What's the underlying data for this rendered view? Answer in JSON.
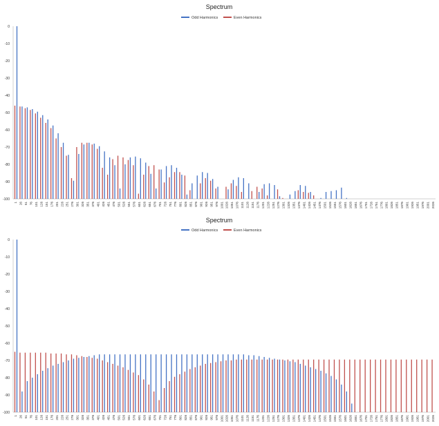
{
  "chart_data": [
    {
      "type": "bar",
      "title": "Spectrum",
      "legend": {
        "placement": "top-center"
      },
      "ylim": [
        -100,
        0
      ],
      "yticks": [
        0,
        -10,
        -20,
        -30,
        -40,
        -50,
        -60,
        -70,
        -80,
        -90,
        -100
      ],
      "x": [
        1,
        26,
        51,
        76,
        101,
        126,
        151,
        176,
        201,
        226,
        251,
        276,
        301,
        326,
        351,
        376,
        401,
        426,
        451,
        476,
        501,
        526,
        551,
        576,
        601,
        626,
        651,
        676,
        701,
        726,
        751,
        776,
        801,
        826,
        851,
        876,
        901,
        926,
        951,
        976,
        1001,
        1026,
        1051,
        1076,
        1101,
        1126,
        1151,
        1176,
        1201,
        1226,
        1251,
        1276,
        1301,
        1326,
        1351,
        1376,
        1401,
        1426,
        1451,
        1476,
        1501,
        1526,
        1551,
        1576,
        1601,
        1626,
        1651,
        1676,
        1701,
        1726,
        1751,
        1776,
        1801,
        1826,
        1851,
        1876,
        1901,
        1926,
        1951,
        1976,
        2001,
        2026
      ],
      "series": [
        {
          "name": "Odd Harmonics",
          "color": "#4472c4",
          "values": [
            0,
            -46.5,
            -47,
            -48,
            -49.5,
            -51.5,
            -54,
            -57.5,
            -62,
            -67.5,
            -74.5,
            -89.5,
            -74,
            -68.5,
            -67.5,
            -68,
            -69.5,
            -72.5,
            -76,
            -80.5,
            -94,
            -80,
            -76,
            -75.5,
            -76.5,
            -79,
            -85.5,
            -94,
            -83,
            -81,
            -80.5,
            -82,
            -86,
            -97.5,
            -91,
            -86.5,
            -84.5,
            -85,
            -88.5,
            -93,
            -100,
            -94.5,
            -89,
            -87.5,
            -88,
            -91,
            -100,
            -96,
            -91.5,
            -91,
            -92,
            -98.5,
            -100,
            -97.5,
            -95.5,
            -92,
            -92.5,
            -96,
            -100,
            -99.5,
            -96,
            -95.5,
            -95,
            -93.5,
            -99.5,
            -100,
            -100,
            -100,
            -100,
            -100,
            -100,
            -100,
            -100,
            -100,
            -100,
            -100,
            -100,
            -100,
            -100,
            -100,
            -100,
            -100
          ]
        },
        {
          "name": "Even Harmonics",
          "color": "#c0504d",
          "values": [
            -46,
            -46.5,
            -47.5,
            -48.5,
            -50.5,
            -53,
            -56,
            -59,
            -65,
            -70,
            -75,
            -88,
            -70,
            -67.5,
            -67.5,
            -68.5,
            -71,
            -82,
            -86,
            -77,
            -75,
            -76,
            -77.5,
            -80.5,
            -97,
            -86,
            -81,
            -80.5,
            -83,
            -90.5,
            -87.5,
            -84.5,
            -84.5,
            -86.5,
            -95,
            -100,
            -91,
            -88,
            -89.5,
            -94,
            -100,
            -93,
            -91,
            -92.5,
            -96,
            -100,
            -95.5,
            -93,
            -94,
            -98,
            -100,
            -94.5,
            -99.5,
            -100,
            -100,
            -95,
            -96,
            -96.5,
            -98,
            -100,
            -100,
            -100,
            -100,
            -100,
            -100,
            -100,
            -100,
            -100,
            -100,
            -100,
            -100,
            -100,
            -100,
            -100,
            -100,
            -100,
            -100,
            -100,
            -100,
            -100,
            -100,
            -100
          ]
        }
      ]
    },
    {
      "type": "bar",
      "title": "Spectrum",
      "legend": {
        "placement": "top-center"
      },
      "ylim": [
        -100,
        0
      ],
      "yticks": [
        0,
        -10,
        -20,
        -30,
        -40,
        -50,
        -60,
        -70,
        -80,
        -90,
        -100
      ],
      "x": [
        1,
        26,
        51,
        76,
        101,
        126,
        151,
        176,
        201,
        226,
        251,
        276,
        301,
        326,
        351,
        376,
        401,
        426,
        451,
        476,
        501,
        526,
        551,
        576,
        601,
        626,
        651,
        676,
        701,
        726,
        751,
        776,
        801,
        826,
        851,
        876,
        901,
        926,
        951,
        976,
        1001,
        1026,
        1051,
        1076,
        1101,
        1126,
        1151,
        1176,
        1201,
        1226,
        1251,
        1276,
        1301,
        1326,
        1351,
        1376,
        1401,
        1426,
        1451,
        1476,
        1501,
        1526,
        1551,
        1576,
        1601,
        1626,
        1651,
        1676,
        1701,
        1726,
        1751,
        1776,
        1801,
        1826,
        1851,
        1876,
        1901,
        1926,
        1951,
        1976,
        2001,
        2026
      ],
      "series": [
        {
          "name": "Odd Harmonics",
          "color": "#4472c4",
          "values": [
            0,
            -88,
            -82,
            -80,
            -78,
            -76,
            -74.5,
            -73,
            -72,
            -71,
            -70,
            -69,
            -68.5,
            -68,
            -67.5,
            -67,
            -66.5,
            -66.5,
            -66.5,
            -66.5,
            -66.5,
            -66.5,
            -66.5,
            -66.5,
            -66.5,
            -66.5,
            -66.5,
            -66.5,
            -66.5,
            -66.5,
            -66.5,
            -66.5,
            -66.5,
            -66.5,
            -66.5,
            -66.5,
            -66.5,
            -66.5,
            -66.5,
            -66.5,
            -66.5,
            -66.5,
            -66.5,
            -66.5,
            -66.5,
            -67,
            -67,
            -67.5,
            -68,
            -68.5,
            -69,
            -69.5,
            -70,
            -70.5,
            -71,
            -72,
            -73,
            -74,
            -75,
            -76,
            -77.5,
            -79,
            -81,
            -84,
            -88,
            -95,
            -100,
            -100,
            -100,
            -100,
            -100,
            -100,
            -100,
            -100,
            -100,
            -100,
            -100,
            -100,
            -100,
            -100,
            -100,
            -100
          ]
        },
        {
          "name": "Even Harmonics",
          "color": "#c0504d",
          "values": [
            -65,
            -65.5,
            -65.5,
            -65.5,
            -65.5,
            -65.5,
            -65.5,
            -66,
            -66,
            -66,
            -66.5,
            -66.5,
            -67,
            -67.5,
            -68,
            -68.5,
            -69,
            -70,
            -71,
            -72,
            -73,
            -74,
            -75.5,
            -77,
            -78.5,
            -81,
            -84,
            -88,
            -93,
            -86,
            -82,
            -79.5,
            -78,
            -76.5,
            -75,
            -74,
            -73,
            -72,
            -71.5,
            -71,
            -70.5,
            -70,
            -70,
            -69.5,
            -69.5,
            -69.5,
            -69.5,
            -69.5,
            -69.5,
            -69.5,
            -69.5,
            -69.5,
            -69.5,
            -69.5,
            -69.5,
            -69.5,
            -69.5,
            -69.5,
            -69.5,
            -69.5,
            -69.5,
            -69.5,
            -69.5,
            -69.5,
            -69.5,
            -69.5,
            -69.5,
            -69.5,
            -69.5,
            -69.5,
            -69.5,
            -69.5,
            -69.5,
            -69.5,
            -69.5,
            -69.5,
            -69.5,
            -69.5,
            -69.5,
            -69.5,
            -69.5,
            -69.5
          ]
        }
      ]
    }
  ]
}
